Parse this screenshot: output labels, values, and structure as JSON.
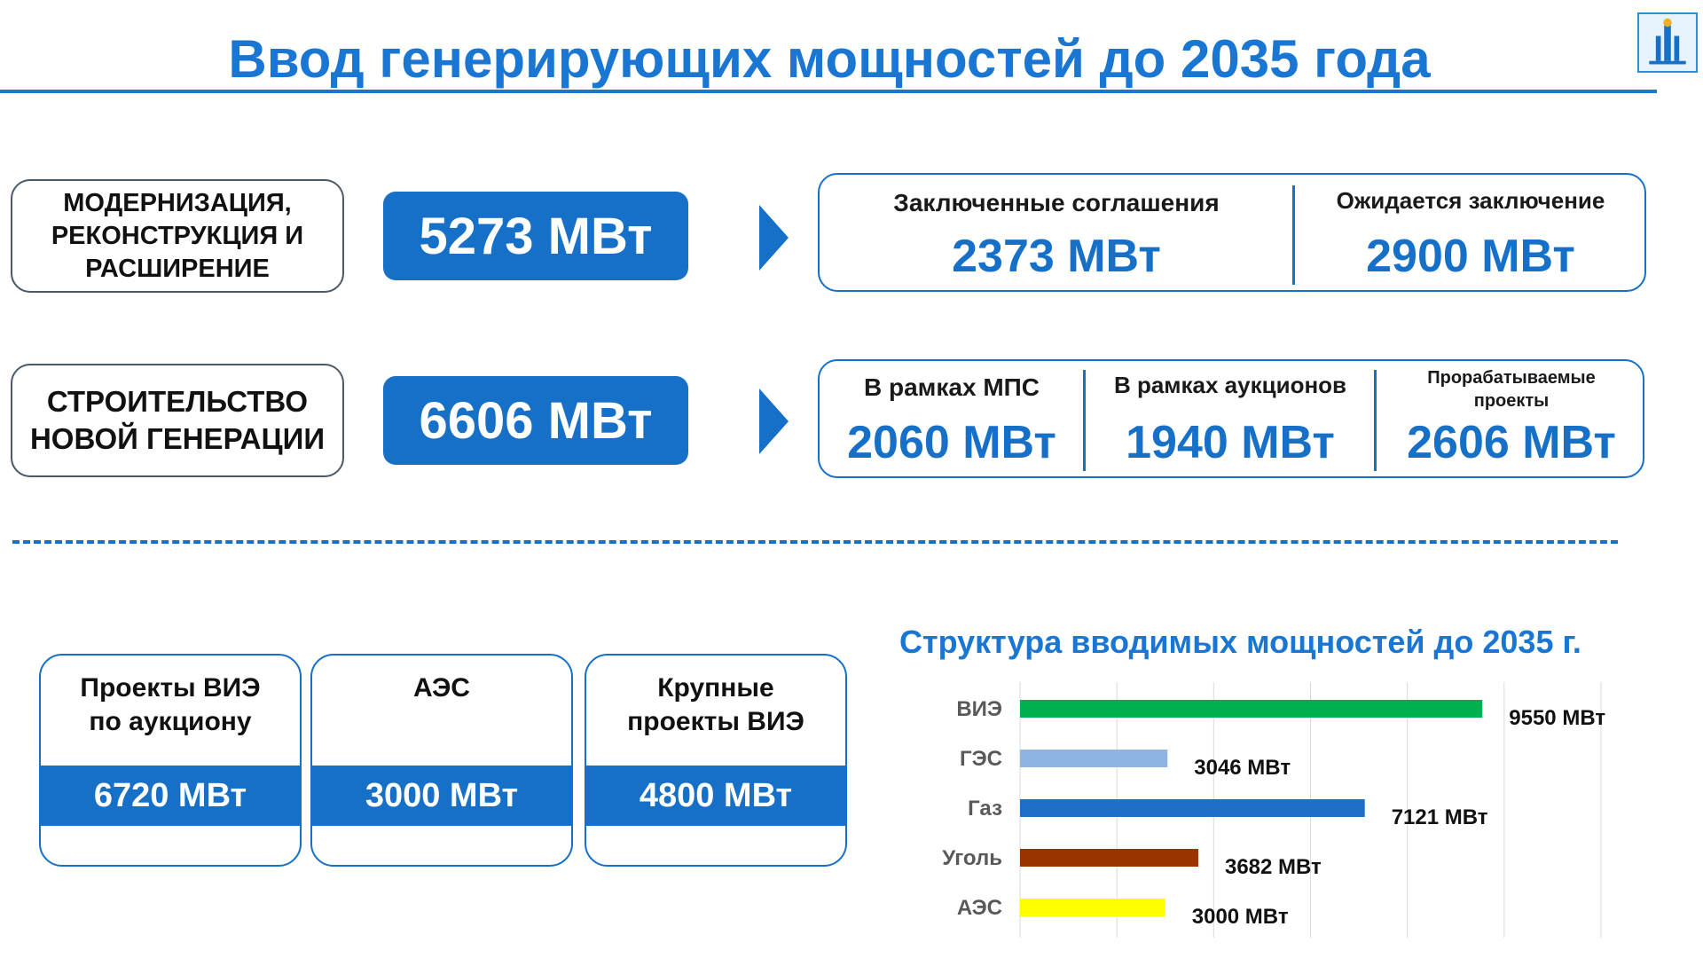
{
  "header": {
    "title": "Ввод генерирующих мощностей до 2035 года",
    "logo_icon": "building-emblem-icon"
  },
  "rows": [
    {
      "label": [
        "МОДЕРНИЗАЦИЯ,",
        "РЕКОНСТРУКЦИЯ И",
        "РАСШИРЕНИЕ"
      ],
      "total": "5273 МВт",
      "segments": [
        {
          "label": "Заключенные соглашения",
          "value": "2373 МВт"
        },
        {
          "label": "Ожидается заключение",
          "value": "2900 МВт"
        }
      ]
    },
    {
      "label": [
        "СТРОИТЕЛЬСТВО",
        "НОВОЙ ГЕНЕРАЦИИ"
      ],
      "total": "6606 МВт",
      "segments": [
        {
          "label": "В рамках МПС",
          "value": "2060 МВт"
        },
        {
          "label": "В рамках аукционов",
          "value": "1940 МВт"
        },
        {
          "label": "Прорабатываемые проекты",
          "value": "2606 МВт"
        }
      ]
    }
  ],
  "cards": [
    {
      "title": [
        "Проекты ВИЭ",
        "по аукциону"
      ],
      "value": "6720 МВт"
    },
    {
      "title": [
        "АЭС"
      ],
      "value": "3000 МВт"
    },
    {
      "title": [
        "Крупные",
        "проекты ВИЭ"
      ],
      "value": "4800 МВт"
    }
  ],
  "chart_data": {
    "type": "bar",
    "orientation": "horizontal",
    "title": "Структура вводимых мощностей до 2035 г.",
    "categories": [
      "ВИЭ",
      "ГЭС",
      "Газ",
      "Уголь",
      "АЭС"
    ],
    "values": [
      9550,
      3046,
      7121,
      3682,
      3000
    ],
    "data_labels": [
      "9550 МВт",
      "3046 МВт",
      "7121 МВт",
      "3682 МВт",
      "3000 МВт"
    ],
    "colors": [
      "#00b050",
      "#8eb4e3",
      "#1f6fc8",
      "#993300",
      "#ffff00"
    ],
    "xlim": [
      0,
      12000
    ],
    "grid": true,
    "legend": "none"
  }
}
